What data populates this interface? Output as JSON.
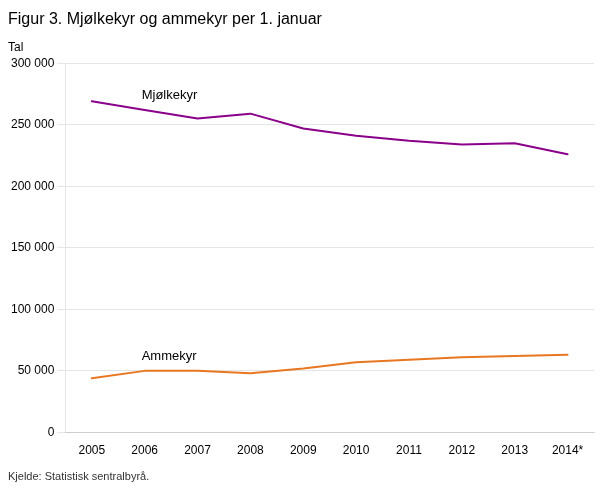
{
  "chart_data": {
    "type": "line",
    "title": "Figur 3. Mjølkekyr og ammekyr per 1. januar",
    "ylabel": "Tal",
    "source": "Kjelde: Statistisk sentralbyrå.",
    "categories": [
      "2005",
      "2006",
      "2007",
      "2008",
      "2009",
      "2010",
      "2011",
      "2012",
      "2013",
      "2014*"
    ],
    "series": [
      {
        "name": "Mjølkekyr",
        "color": "#8B008B",
        "values": [
          269000,
          262000,
          255000,
          259000,
          247000,
          241000,
          237000,
          234000,
          235000,
          226000
        ]
      },
      {
        "name": "Ammekyr",
        "color": "#E87722",
        "values": [
          44000,
          50000,
          50000,
          48000,
          52000,
          57000,
          59000,
          61000,
          62000,
          63000
        ]
      }
    ],
    "ylim": [
      0,
      300000
    ],
    "yticks": [
      0,
      {
        "value": 50000,
        "label": "50 000"
      },
      {
        "value": 100000,
        "label": "100 000"
      },
      {
        "value": 150000,
        "label": "150 000"
      },
      {
        "value": 200000,
        "label": "200 000"
      },
      {
        "value": 250000,
        "label": "250 000"
      },
      {
        "value": 300000,
        "label": "300 000"
      }
    ],
    "grid": true
  }
}
